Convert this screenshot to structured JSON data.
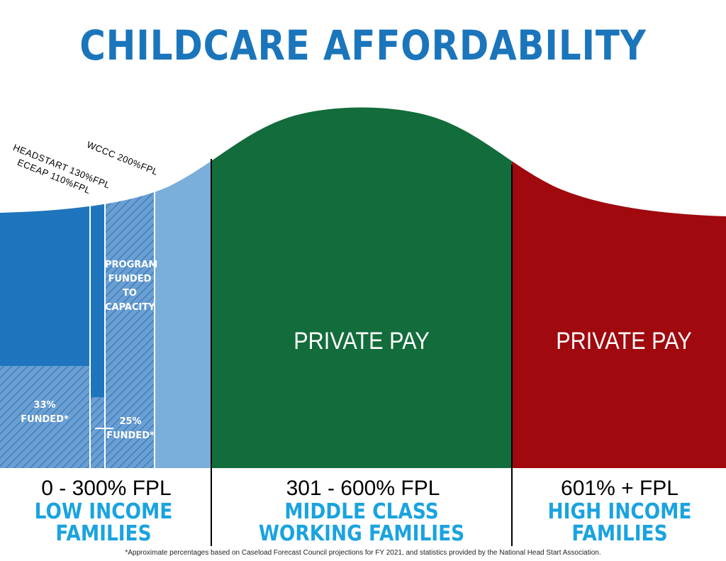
{
  "title": "CHILDCARE AFFORDABILITY",
  "annotations": {
    "wccc": "WCCC 200%FPL",
    "headstart": "HEADSTART 130%FPL",
    "eceap": "ECEAP 110%FPL",
    "program_funded": [
      "PROGRAM",
      "FUNDED",
      "TO",
      "CAPACITY"
    ],
    "low_funded": [
      "33%",
      "FUNDED*"
    ],
    "headstart_funded": [
      "25%",
      "FUNDED*"
    ]
  },
  "segments": [
    {
      "fpl": "0 - 300% FPL",
      "category": [
        "LOW INCOME",
        "FAMILIES"
      ]
    },
    {
      "fpl": "301 - 600% FPL",
      "category": [
        "MIDDLE CLASS",
        "WORKING FAMILIES"
      ],
      "label": "PRIVATE PAY"
    },
    {
      "fpl": "601% + FPL",
      "category": [
        "HIGH INCOME",
        "FAMILIES"
      ],
      "label": "PRIVATE PAY"
    }
  ],
  "colors": {
    "title": "#1b75bb",
    "low_dark": "#1f75bd",
    "low_light": "#7aaedb",
    "middle": "#136c3b",
    "high": "#a0090e",
    "category_text": "#1aa3df"
  },
  "footnote": "*Approximate percentages based on Caseload Forecast Council projections for FY 2021, and statistics provided by the National Head Start Association."
}
